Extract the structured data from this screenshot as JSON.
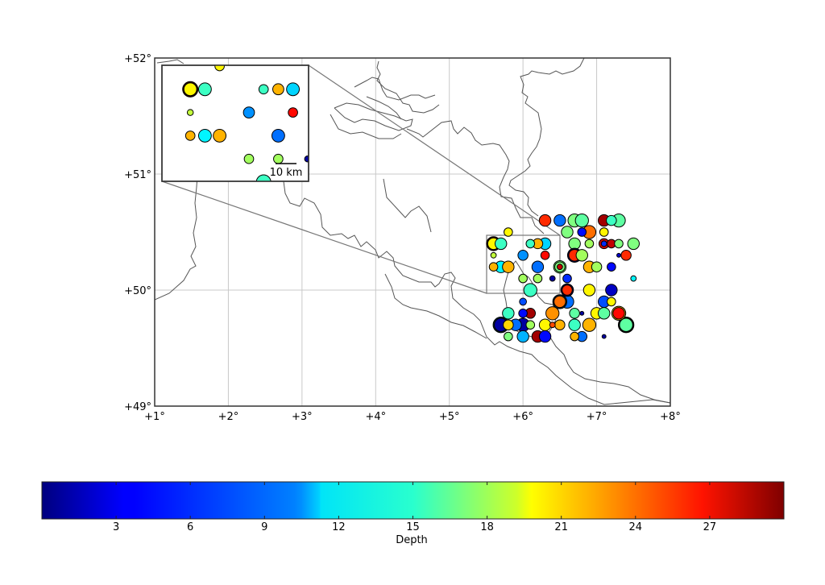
{
  "chart_data": {
    "type": "scatter",
    "title": "",
    "projection": "lat/lon map",
    "x_axis": {
      "range": [
        1,
        8
      ],
      "tick_labels": [
        "+1°",
        "+2°",
        "+3°",
        "+4°",
        "+5°",
        "+6°",
        "+7°",
        "+8°"
      ],
      "tick_values": [
        1,
        2,
        3,
        4,
        5,
        6,
        7,
        8
      ]
    },
    "y_axis": {
      "range": [
        49,
        52
      ],
      "tick_labels": [
        "+49°",
        "+50°",
        "+51°",
        "+52°"
      ],
      "tick_values": [
        49,
        50,
        51,
        52
      ]
    },
    "grid": true,
    "colorbar": {
      "label": "Depth",
      "cmap": "jet",
      "range": [
        0,
        30
      ],
      "tick_labels": [
        "3",
        "6",
        "9",
        "12",
        "15",
        "18",
        "21",
        "24",
        "27"
      ],
      "tick_values": [
        3,
        6,
        9,
        12,
        15,
        18,
        21,
        24,
        27
      ],
      "orientation": "horizontal"
    },
    "inset": {
      "zoom_region": {
        "lon": [
          5.5,
          6.5
        ],
        "lat": [
          50.0,
          50.5
        ]
      },
      "scale_bar_label": "10 km"
    },
    "points": [
      {
        "lon": 6.3,
        "lat": 50.6,
        "depth": 25,
        "size": 6
      },
      {
        "lon": 6.5,
        "lat": 50.6,
        "depth": 7,
        "size": 6
      },
      {
        "lon": 6.7,
        "lat": 50.6,
        "depth": 15,
        "size": 7
      },
      {
        "lon": 6.8,
        "lat": 50.6,
        "depth": 14,
        "size": 7
      },
      {
        "lon": 7.1,
        "lat": 50.6,
        "depth": 29,
        "size": 6
      },
      {
        "lon": 7.2,
        "lat": 50.6,
        "depth": 13,
        "size": 5
      },
      {
        "lon": 7.3,
        "lat": 50.6,
        "depth": 14,
        "size": 7
      },
      {
        "lon": 5.8,
        "lat": 50.5,
        "depth": 19,
        "size": 4
      },
      {
        "lon": 6.6,
        "lat": 50.5,
        "depth": 15,
        "size": 6
      },
      {
        "lon": 6.8,
        "lat": 50.5,
        "depth": 4,
        "size": 4
      },
      {
        "lon": 6.9,
        "lat": 50.5,
        "depth": 23,
        "size": 7
      },
      {
        "lon": 7.1,
        "lat": 50.5,
        "depth": 19,
        "size": 4
      },
      {
        "lon": 5.6,
        "lat": 50.4,
        "depth": 19,
        "size": 6,
        "ring": "#3a0000"
      },
      {
        "lon": 5.7,
        "lat": 50.4,
        "depth": 13,
        "size": 6
      },
      {
        "lon": 6.1,
        "lat": 50.4,
        "depth": 13,
        "size": 4
      },
      {
        "lon": 6.2,
        "lat": 50.4,
        "depth": 21,
        "size": 5
      },
      {
        "lon": 6.3,
        "lat": 50.4,
        "depth": 10,
        "size": 6
      },
      {
        "lon": 6.7,
        "lat": 50.4,
        "depth": 15,
        "size": 6
      },
      {
        "lon": 6.9,
        "lat": 50.4,
        "depth": 16,
        "size": 4
      },
      {
        "lon": 7.1,
        "lat": 50.4,
        "depth": 28,
        "size": 5
      },
      {
        "lon": 7.1,
        "lat": 50.4,
        "depth": 5,
        "size": 2
      },
      {
        "lon": 7.2,
        "lat": 50.4,
        "depth": 28,
        "size": 4
      },
      {
        "lon": 7.3,
        "lat": 50.4,
        "depth": 15,
        "size": 4
      },
      {
        "lon": 7.5,
        "lat": 50.4,
        "depth": 15,
        "size": 6
      },
      {
        "lon": 5.6,
        "lat": 50.3,
        "depth": 17,
        "size": 2
      },
      {
        "lon": 6.0,
        "lat": 50.3,
        "depth": 8,
        "size": 5
      },
      {
        "lon": 6.3,
        "lat": 50.3,
        "depth": 26,
        "size": 4
      },
      {
        "lon": 6.7,
        "lat": 50.3,
        "depth": 25,
        "size": 6,
        "ring": "#00004c"
      },
      {
        "lon": 6.8,
        "lat": 50.3,
        "depth": 16,
        "size": 6
      },
      {
        "lon": 7.3,
        "lat": 50.3,
        "depth": 2,
        "size": 1
      },
      {
        "lon": 7.4,
        "lat": 50.3,
        "depth": 25,
        "size": 5
      },
      {
        "lon": 5.6,
        "lat": 50.2,
        "depth": 21,
        "size": 4
      },
      {
        "lon": 5.7,
        "lat": 50.2,
        "depth": 11,
        "size": 6
      },
      {
        "lon": 5.8,
        "lat": 50.2,
        "depth": 21,
        "size": 6
      },
      {
        "lon": 6.2,
        "lat": 50.2,
        "depth": 7,
        "size": 6
      },
      {
        "lon": 6.5,
        "lat": 50.2,
        "depth": 15,
        "size": 5,
        "ring": "#7fff7f"
      },
      {
        "lon": 6.5,
        "lat": 50.2,
        "depth": 28,
        "size": 2
      },
      {
        "lon": 6.9,
        "lat": 50.2,
        "depth": 21,
        "size": 6
      },
      {
        "lon": 7.0,
        "lat": 50.2,
        "depth": 16,
        "size": 5
      },
      {
        "lon": 7.2,
        "lat": 50.2,
        "depth": 4,
        "size": 4
      },
      {
        "lon": 6.0,
        "lat": 50.1,
        "depth": 16,
        "size": 4
      },
      {
        "lon": 6.2,
        "lat": 50.1,
        "depth": 16,
        "size": 4
      },
      {
        "lon": 6.4,
        "lat": 50.1,
        "depth": 1,
        "size": 2
      },
      {
        "lon": 6.6,
        "lat": 50.1,
        "depth": 5,
        "size": 4
      },
      {
        "lon": 7.5,
        "lat": 50.1,
        "depth": 11,
        "size": 2
      },
      {
        "lon": 6.1,
        "lat": 50.0,
        "depth": 13,
        "size": 7
      },
      {
        "lon": 6.6,
        "lat": 50.0,
        "depth": 25,
        "size": 5,
        "ring": "#00004c"
      },
      {
        "lon": 6.9,
        "lat": 50.0,
        "depth": 19,
        "size": 6
      },
      {
        "lon": 7.2,
        "lat": 50.0,
        "depth": 2,
        "size": 6
      },
      {
        "lon": 6.0,
        "lat": 49.9,
        "depth": 6,
        "size": 3
      },
      {
        "lon": 6.5,
        "lat": 49.9,
        "depth": 23,
        "size": 6,
        "ring": "#003040"
      },
      {
        "lon": 6.6,
        "lat": 49.9,
        "depth": 7,
        "size": 7
      },
      {
        "lon": 7.1,
        "lat": 49.9,
        "depth": 6,
        "size": 6
      },
      {
        "lon": 7.2,
        "lat": 49.9,
        "depth": 19,
        "size": 4
      },
      {
        "lon": 5.8,
        "lat": 49.8,
        "depth": 13,
        "size": 6
      },
      {
        "lon": 6.0,
        "lat": 49.8,
        "depth": 4,
        "size": 4
      },
      {
        "lon": 6.1,
        "lat": 49.8,
        "depth": 29,
        "size": 5
      },
      {
        "lon": 6.4,
        "lat": 49.8,
        "depth": 22,
        "size": 7
      },
      {
        "lon": 6.7,
        "lat": 49.8,
        "depth": 14,
        "size": 5
      },
      {
        "lon": 6.8,
        "lat": 49.8,
        "depth": 1,
        "size": 1
      },
      {
        "lon": 7.0,
        "lat": 49.8,
        "depth": 19,
        "size": 6
      },
      {
        "lon": 7.1,
        "lat": 49.8,
        "depth": 14,
        "size": 6
      },
      {
        "lon": 7.3,
        "lat": 49.8,
        "depth": 26,
        "size": 6,
        "ring": "#ffd200"
      },
      {
        "lon": 5.7,
        "lat": 49.7,
        "depth": 1,
        "size": 7,
        "ring": "#003040"
      },
      {
        "lon": 5.8,
        "lat": 49.7,
        "depth": 20,
        "size": 5
      },
      {
        "lon": 5.9,
        "lat": 49.7,
        "depth": 7,
        "size": 6
      },
      {
        "lon": 6.0,
        "lat": 49.7,
        "depth": 1,
        "size": 7
      },
      {
        "lon": 6.1,
        "lat": 49.7,
        "depth": 16,
        "size": 4
      },
      {
        "lon": 6.3,
        "lat": 49.7,
        "depth": 19,
        "size": 6
      },
      {
        "lon": 6.4,
        "lat": 49.7,
        "depth": 24,
        "size": 2
      },
      {
        "lon": 6.5,
        "lat": 49.7,
        "depth": 21,
        "size": 5
      },
      {
        "lon": 6.7,
        "lat": 49.7,
        "depth": 13,
        "size": 6
      },
      {
        "lon": 6.9,
        "lat": 49.7,
        "depth": 21,
        "size": 7
      },
      {
        "lon": 7.4,
        "lat": 49.7,
        "depth": 14,
        "size": 7,
        "ring": "#000000"
      },
      {
        "lon": 5.8,
        "lat": 49.6,
        "depth": 15,
        "size": 4
      },
      {
        "lon": 6.0,
        "lat": 49.6,
        "depth": 9,
        "size": 6
      },
      {
        "lon": 6.2,
        "lat": 49.6,
        "depth": 29,
        "size": 6
      },
      {
        "lon": 6.3,
        "lat": 49.6,
        "depth": 4,
        "size": 6
      },
      {
        "lon": 6.7,
        "lat": 49.6,
        "depth": 21,
        "size": 4
      },
      {
        "lon": 6.8,
        "lat": 49.6,
        "depth": 7,
        "size": 5
      },
      {
        "lon": 7.1,
        "lat": 49.6,
        "depth": 1,
        "size": 1
      }
    ]
  },
  "map": {
    "inset_scale_label": "10 km",
    "colorbar_label": "Depth"
  }
}
